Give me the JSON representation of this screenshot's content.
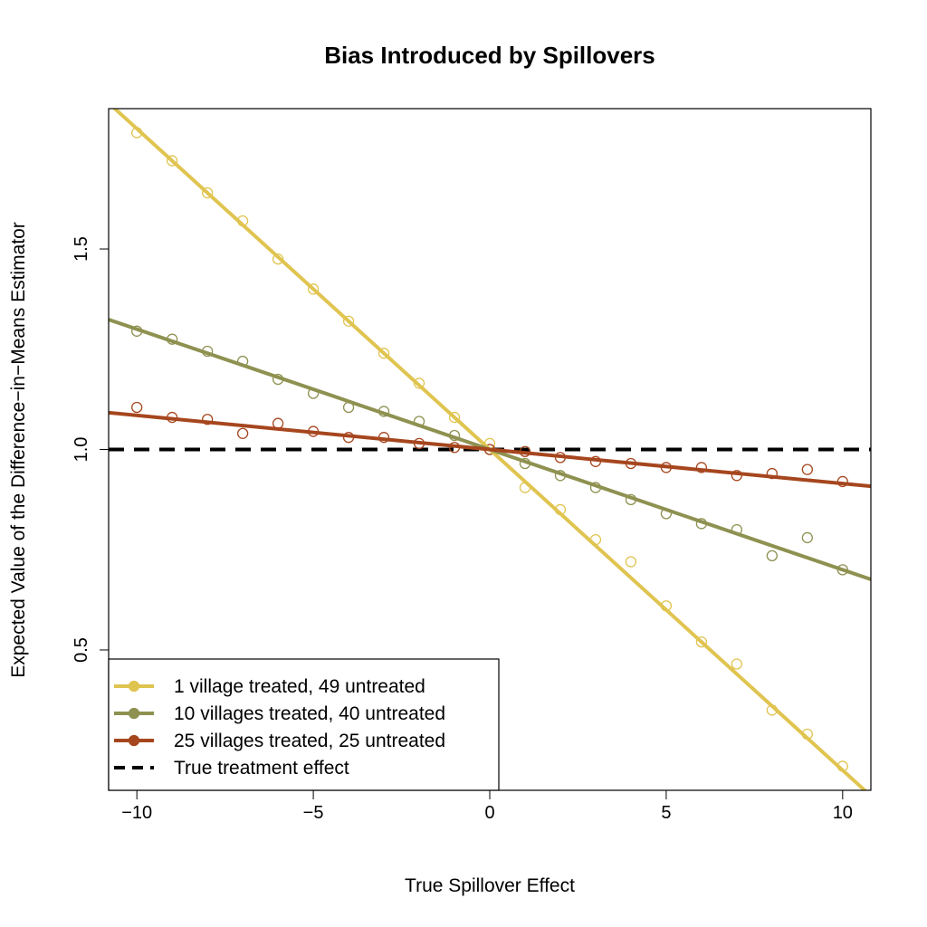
{
  "chart_data": {
    "type": "line",
    "title": "Bias Introduced by Spillovers",
    "xlabel": "True Spillover Effect",
    "ylabel": "Expected Value of the Difference−in−Means Estimator",
    "xlim": [
      -10.8,
      10.8
    ],
    "ylim": [
      0.15,
      1.85
    ],
    "xticks": [
      -10,
      -5,
      0,
      5,
      10
    ],
    "xtick_labels": [
      "−10",
      "−5",
      "0",
      "5",
      "10"
    ],
    "yticks": [
      0.5,
      1.0,
      1.5
    ],
    "ytick_labels": [
      "0.5",
      "1.0",
      "1.5"
    ],
    "grid": false,
    "legend_position": "bottom-left",
    "x": [
      -10,
      -9,
      -8,
      -7,
      -6,
      -5,
      -4,
      -3,
      -2,
      -1,
      0,
      1,
      2,
      3,
      4,
      5,
      6,
      7,
      8,
      9,
      10
    ],
    "series": [
      {
        "name": "1 village treated, 49 untreated",
        "color": "#E0C450",
        "fit": {
          "intercept": 1.0,
          "slope": -0.08
        },
        "points": [
          1.79,
          1.72,
          1.64,
          1.57,
          1.475,
          1.4,
          1.32,
          1.24,
          1.165,
          1.08,
          1.015,
          0.905,
          0.85,
          0.775,
          0.72,
          0.61,
          0.52,
          0.465,
          0.35,
          0.29,
          0.21
        ]
      },
      {
        "name": "10 villages treated, 40 untreated",
        "color": "#8E9150",
        "fit": {
          "intercept": 1.0,
          "slope": -0.03
        },
        "points": [
          1.295,
          1.275,
          1.245,
          1.22,
          1.175,
          1.14,
          1.105,
          1.095,
          1.07,
          1.035,
          1.0,
          0.965,
          0.935,
          0.905,
          0.875,
          0.84,
          0.815,
          0.8,
          0.735,
          0.78,
          0.7
        ]
      },
      {
        "name": "25 villages treated, 25 untreated",
        "color": "#A6461E",
        "fit": {
          "intercept": 1.0,
          "slope": -0.0085
        },
        "points": [
          1.105,
          1.08,
          1.075,
          1.04,
          1.065,
          1.045,
          1.03,
          1.03,
          1.015,
          1.005,
          1.0,
          0.995,
          0.98,
          0.97,
          0.965,
          0.955,
          0.955,
          0.935,
          0.94,
          0.95,
          0.92
        ]
      }
    ],
    "reference_line": {
      "name": "True treatment effect",
      "y": 1.0,
      "style": "dashed",
      "color": "#000000"
    }
  }
}
